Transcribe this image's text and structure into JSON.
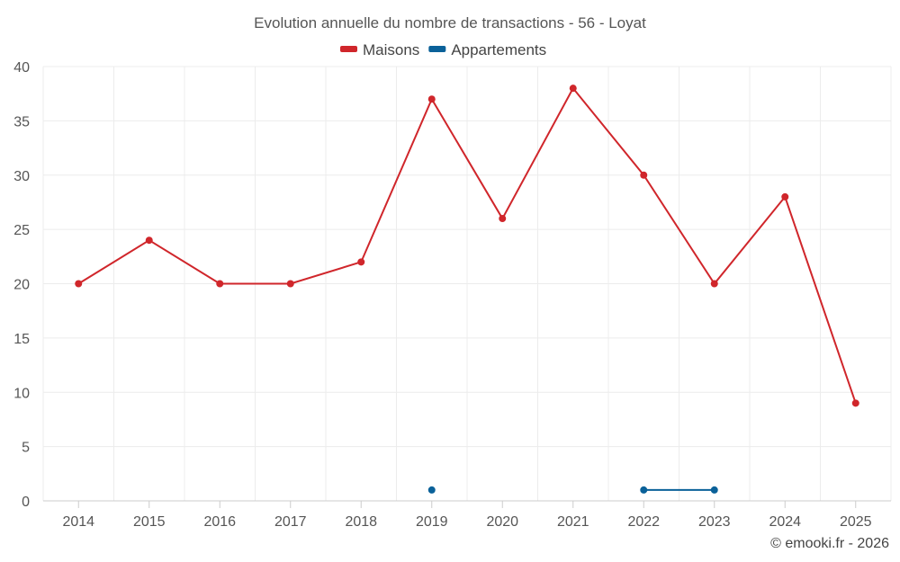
{
  "chart_data": {
    "type": "line",
    "title": "Evolution annuelle du nombre de transactions - 56 - Loyat",
    "xlabel": "",
    "ylabel": "",
    "categories": [
      "2014",
      "2015",
      "2016",
      "2017",
      "2018",
      "2019",
      "2020",
      "2021",
      "2022",
      "2023",
      "2024",
      "2025"
    ],
    "ylim": [
      0,
      40
    ],
    "yticks": [
      0,
      5,
      10,
      15,
      20,
      25,
      30,
      35,
      40
    ],
    "grid": true,
    "legend_position": "top-center",
    "series": [
      {
        "name": "Maisons",
        "color": "#d0262b",
        "values": [
          20,
          24,
          20,
          20,
          22,
          37,
          26,
          38,
          30,
          20,
          28,
          9
        ]
      },
      {
        "name": "Appartements",
        "color": "#0a6199",
        "values": [
          null,
          null,
          null,
          null,
          null,
          1,
          null,
          null,
          1,
          1,
          null,
          null
        ]
      }
    ]
  },
  "footer": {
    "copyright": "© emooki.fr - 2026"
  }
}
